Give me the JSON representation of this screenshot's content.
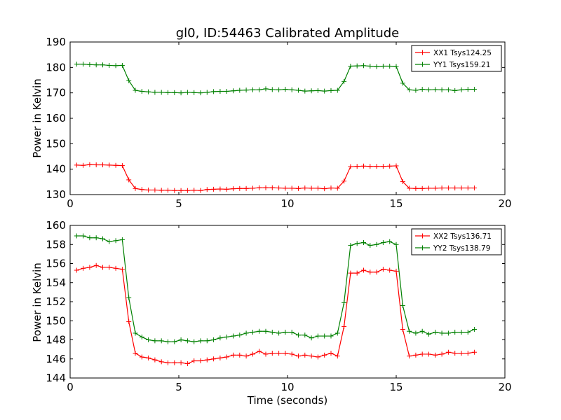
{
  "chart_data": [
    {
      "type": "line",
      "title": "gl0, ID:54463 Calibrated Amplitude",
      "xlabel": "",
      "ylabel": "Power in Kelvin",
      "xlim": [
        0,
        20
      ],
      "ylim": [
        130,
        190
      ],
      "xticks": [
        "0",
        "5",
        "10",
        "15",
        "20"
      ],
      "yticks": [
        "130",
        "140",
        "150",
        "160",
        "170",
        "180",
        "190"
      ],
      "legend_position": "top-right",
      "grid": false,
      "x": [
        0.3,
        0.6,
        0.9,
        1.2,
        1.5,
        1.8,
        2.1,
        2.4,
        2.7,
        3.0,
        3.3,
        3.6,
        3.9,
        4.2,
        4.5,
        4.8,
        5.1,
        5.4,
        5.7,
        6.0,
        6.3,
        6.6,
        6.9,
        7.2,
        7.5,
        7.8,
        8.1,
        8.4,
        8.7,
        9.0,
        9.3,
        9.6,
        9.9,
        10.2,
        10.5,
        10.8,
        11.1,
        11.4,
        11.7,
        12.0,
        12.3,
        12.6,
        12.9,
        13.2,
        13.5,
        13.8,
        14.1,
        14.4,
        14.7,
        15.0,
        15.3,
        15.6,
        15.9,
        16.2,
        16.5,
        16.8,
        17.1,
        17.4,
        17.7,
        18.0,
        18.3,
        18.6
      ],
      "series": [
        {
          "name": "XX1 Tsys124.25",
          "color": "#ff0000",
          "values": [
            141.6,
            141.5,
            141.8,
            141.7,
            141.7,
            141.6,
            141.5,
            141.4,
            135.8,
            132.4,
            132.0,
            131.8,
            131.8,
            131.7,
            131.7,
            131.6,
            131.6,
            131.6,
            131.7,
            131.6,
            132.0,
            132.1,
            132.2,
            132.1,
            132.3,
            132.4,
            132.4,
            132.5,
            132.7,
            132.7,
            132.7,
            132.6,
            132.5,
            132.5,
            132.4,
            132.6,
            132.5,
            132.5,
            132.3,
            132.6,
            132.5,
            135.3,
            141.0,
            141.1,
            141.2,
            141.1,
            141.1,
            141.1,
            141.2,
            141.3,
            135.1,
            132.5,
            132.4,
            132.4,
            132.5,
            132.5,
            132.6,
            132.6,
            132.6,
            132.6,
            132.6,
            132.6
          ]
        },
        {
          "name": "YY1 Tsys159.21",
          "color": "#008000",
          "values": [
            181.3,
            181.3,
            181.1,
            181.0,
            181.0,
            180.8,
            180.7,
            180.8,
            174.8,
            171.0,
            170.6,
            170.4,
            170.2,
            170.2,
            170.1,
            170.1,
            170.0,
            170.2,
            170.1,
            170.0,
            170.2,
            170.5,
            170.6,
            170.6,
            170.8,
            171.0,
            171.1,
            171.2,
            171.2,
            171.6,
            171.3,
            171.2,
            171.4,
            171.2,
            171.0,
            170.7,
            170.8,
            170.9,
            170.7,
            170.9,
            171.0,
            174.5,
            180.5,
            180.6,
            180.7,
            180.5,
            180.3,
            180.5,
            180.5,
            180.4,
            173.8,
            171.2,
            171.0,
            171.4,
            171.2,
            171.3,
            171.2,
            171.2,
            170.9,
            171.2,
            171.4,
            171.4
          ]
        }
      ]
    },
    {
      "type": "line",
      "title": "",
      "xlabel": "Time (seconds)",
      "ylabel": "Power in Kelvin",
      "xlim": [
        0,
        20
      ],
      "ylim": [
        144,
        160
      ],
      "xticks": [
        "0",
        "5",
        "10",
        "15",
        "20"
      ],
      "yticks": [
        "144",
        "146",
        "148",
        "150",
        "152",
        "154",
        "156",
        "158",
        "160"
      ],
      "legend_position": "top-right",
      "grid": false,
      "x": [
        0.3,
        0.6,
        0.9,
        1.2,
        1.5,
        1.8,
        2.1,
        2.4,
        2.7,
        3.0,
        3.3,
        3.6,
        3.9,
        4.2,
        4.5,
        4.8,
        5.1,
        5.4,
        5.7,
        6.0,
        6.3,
        6.6,
        6.9,
        7.2,
        7.5,
        7.8,
        8.1,
        8.4,
        8.7,
        9.0,
        9.3,
        9.6,
        9.9,
        10.2,
        10.5,
        10.8,
        11.1,
        11.4,
        11.7,
        12.0,
        12.3,
        12.6,
        12.9,
        13.2,
        13.5,
        13.8,
        14.1,
        14.4,
        14.7,
        15.0,
        15.3,
        15.6,
        15.9,
        16.2,
        16.5,
        16.8,
        17.1,
        17.4,
        17.7,
        18.0,
        18.3,
        18.6
      ],
      "series": [
        {
          "name": "XX2 Tsys136.71",
          "color": "#ff0000",
          "values": [
            155.3,
            155.5,
            155.6,
            155.8,
            155.6,
            155.6,
            155.5,
            155.4,
            149.9,
            146.6,
            146.2,
            146.1,
            145.9,
            145.7,
            145.6,
            145.6,
            145.6,
            145.5,
            145.8,
            145.8,
            145.9,
            146.0,
            146.1,
            146.2,
            146.4,
            146.4,
            146.3,
            146.5,
            146.8,
            146.5,
            146.6,
            146.6,
            146.6,
            146.5,
            146.3,
            146.4,
            146.3,
            146.2,
            146.4,
            146.6,
            146.3,
            149.4,
            155.0,
            155.0,
            155.3,
            155.1,
            155.1,
            155.4,
            155.3,
            155.2,
            149.1,
            146.3,
            146.4,
            146.5,
            146.5,
            146.4,
            146.5,
            146.7,
            146.6,
            146.6,
            146.6,
            146.7
          ]
        },
        {
          "name": "YY2 Tsys138.79",
          "color": "#008000",
          "values": [
            158.9,
            158.9,
            158.7,
            158.7,
            158.6,
            158.3,
            158.4,
            158.5,
            152.4,
            148.7,
            148.3,
            148.0,
            147.9,
            147.9,
            147.8,
            147.8,
            148.0,
            147.9,
            147.8,
            147.9,
            147.9,
            148.0,
            148.2,
            148.3,
            148.4,
            148.5,
            148.7,
            148.8,
            148.9,
            148.9,
            148.8,
            148.7,
            148.8,
            148.8,
            148.5,
            148.5,
            148.2,
            148.4,
            148.4,
            148.4,
            148.7,
            151.9,
            157.9,
            158.1,
            158.2,
            157.9,
            158.0,
            158.2,
            158.3,
            158.0,
            151.6,
            148.9,
            148.7,
            148.9,
            148.6,
            148.8,
            148.7,
            148.7,
            148.8,
            148.8,
            148.8,
            149.1
          ]
        }
      ]
    }
  ]
}
